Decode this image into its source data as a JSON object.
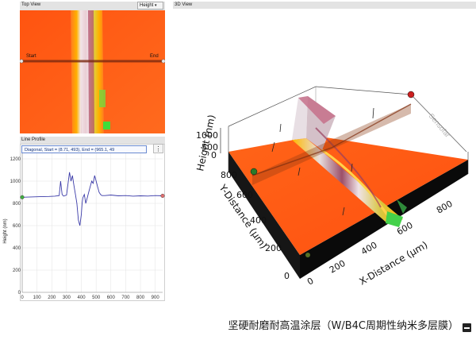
{
  "top_view": {
    "title": "Top View",
    "mode_select": "Height",
    "start_label": "Start",
    "end_label": "End"
  },
  "line_profile": {
    "title": "Line Profile",
    "legend": "Diagonal, Start = (8.71, 493), End = (965.1, 49",
    "menu_icon": "vertical-ellipsis-icon",
    "chart_data": {
      "type": "line",
      "title": "",
      "ylabel": "Height (nm)",
      "xlabel": "",
      "xlim": [
        0,
        950
      ],
      "ylim": [
        0,
        1300
      ],
      "x_ticks": [
        "0",
        "100",
        "200",
        "300",
        "400",
        "500",
        "600",
        "700",
        "800",
        "900"
      ],
      "y_ticks": [
        "0",
        "200",
        "400",
        "600",
        "800",
        "1000",
        "1200"
      ],
      "grid": true,
      "series": [
        {
          "x": [
            0,
            60,
            120,
            180,
            220,
            250,
            260,
            270,
            280,
            300,
            320,
            330,
            340,
            350,
            360,
            370,
            380,
            390,
            400,
            405,
            410,
            420,
            430,
            440,
            450,
            460,
            470,
            480,
            490,
            500,
            510,
            520,
            530,
            540,
            560,
            600,
            650,
            700,
            750,
            800,
            850,
            900,
            950
          ],
          "y": [
            855,
            858,
            860,
            862,
            865,
            870,
            1000,
            880,
            865,
            875,
            1080,
            1000,
            1050,
            960,
            880,
            800,
            650,
            600,
            700,
            800,
            850,
            880,
            800,
            850,
            900,
            950,
            1000,
            980,
            1050,
            1000,
            950,
            900,
            880,
            870,
            870,
            875,
            868,
            870,
            865,
            868,
            866,
            870,
            868
          ]
        }
      ]
    }
  },
  "view3d": {
    "title": "3D View",
    "z_label": "Height (nm)",
    "z_ticks": [
      "1000",
      "500",
      "0"
    ],
    "y_label": "Y-Distance (µm)",
    "y_ticks": [
      "800",
      "600",
      "400",
      "200",
      "0"
    ],
    "x_label": "X-Distance (µm)",
    "x_ticks": [
      "0",
      "200",
      "400",
      "600",
      "800"
    ],
    "watermark": "Sensofar"
  },
  "caption": {
    "text": "坚硬耐磨耐高温涂层（W/B4C周期性纳米多层膜）",
    "icon": "minus-square-icon"
  },
  "colors": {
    "surface": "#ff5a14",
    "panel_header": "#e3e3e3",
    "series": "#3a3aa8"
  }
}
